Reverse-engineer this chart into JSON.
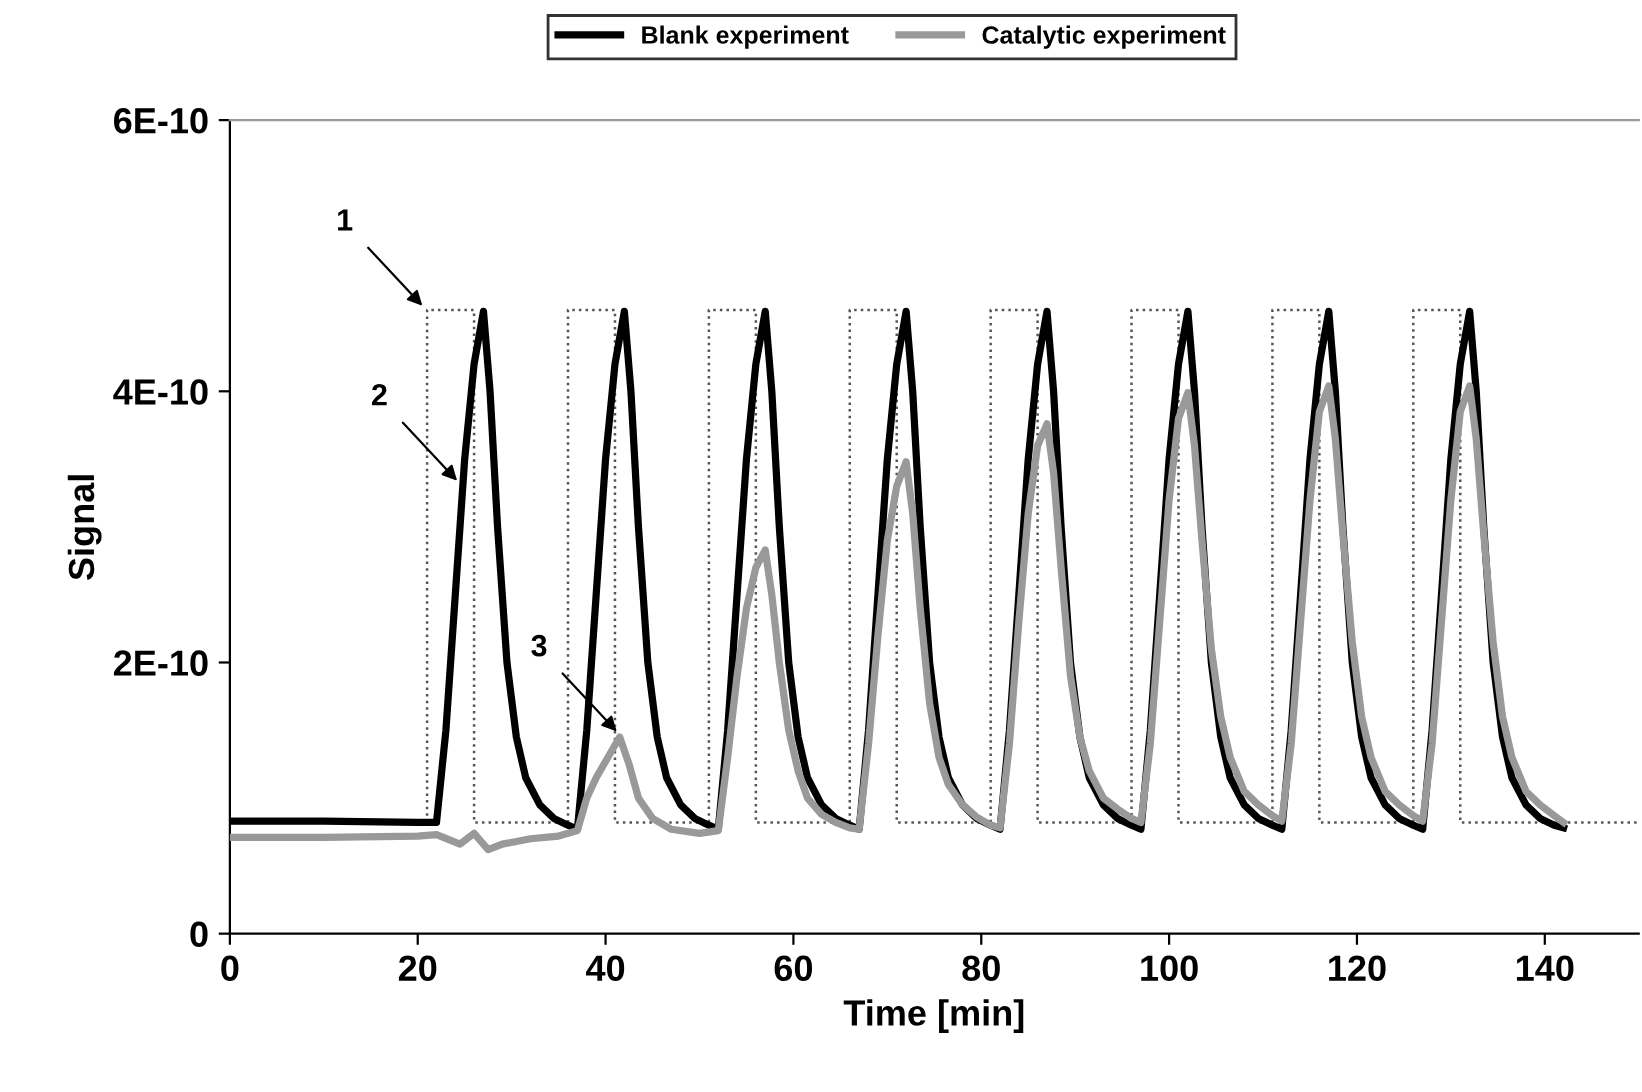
{
  "chart_data": {
    "type": "line",
    "xlabel": "Time [min]",
    "ylabel": "Signal",
    "xlim": [
      0,
      150
    ],
    "xticks": [
      0,
      20,
      40,
      60,
      80,
      100,
      120,
      140
    ],
    "ylim": [
      0,
      6e-10
    ],
    "yticks": [
      0,
      {
        "value": 2e-10,
        "label": "2E-10"
      },
      {
        "value": 4e-10,
        "label": "4E-10"
      },
      {
        "value": 6e-10,
        "label": "6E-10"
      }
    ],
    "grid": false,
    "legend": "top",
    "marker": "none",
    "series": [
      {
        "name": null,
        "color": "#555555",
        "line_style": "dotted",
        "x": [
          21,
          21,
          26,
          26,
          36,
          36,
          41,
          41,
          51,
          51,
          56,
          56,
          66,
          66,
          71,
          71,
          81,
          81,
          86,
          86,
          96,
          96,
          101,
          101,
          111,
          111,
          116,
          116,
          126,
          126,
          131,
          131,
          150
        ],
        "values": [
          8.2e-11,
          4.6e-10,
          4.6e-10,
          8.2e-11,
          8.2e-11,
          4.6e-10,
          4.6e-10,
          8.2e-11,
          8.2e-11,
          4.6e-10,
          4.6e-10,
          8.2e-11,
          8.2e-11,
          4.6e-10,
          4.6e-10,
          8.2e-11,
          8.2e-11,
          4.6e-10,
          4.6e-10,
          8.2e-11,
          8.2e-11,
          4.6e-10,
          4.6e-10,
          8.2e-11,
          8.2e-11,
          4.6e-10,
          4.6e-10,
          8.2e-11,
          8.2e-11,
          4.6e-10,
          4.6e-10,
          8.2e-11,
          8.2e-11
        ]
      },
      {
        "name": "Blank experiment",
        "color": "#000000",
        "line_style": "solid",
        "x": [
          0,
          10,
          20,
          22,
          23,
          24,
          25,
          26,
          27,
          27.7,
          28.5,
          29.5,
          30.5,
          31.5,
          33,
          34.5,
          36,
          37,
          38,
          39,
          40,
          41,
          42,
          42.7,
          43.5,
          44.5,
          45.5,
          46.5,
          48,
          49.5,
          51,
          52,
          53,
          54,
          55,
          56,
          57,
          57.7,
          58.5,
          59.5,
          60.5,
          61.5,
          63,
          64.5,
          66,
          67,
          68,
          69,
          70,
          71,
          72,
          72.7,
          73.5,
          74.5,
          75.5,
          76.5,
          78,
          79.5,
          81,
          82,
          83,
          84,
          85,
          86,
          87,
          87.7,
          88.5,
          89.5,
          90.5,
          91.5,
          93,
          94.5,
          96,
          97,
          98,
          99,
          100,
          101,
          102,
          102.7,
          103.5,
          104.5,
          105.5,
          106.5,
          108,
          109.5,
          111,
          112,
          113,
          114,
          115,
          116,
          117,
          117.7,
          118.5,
          119.5,
          120.5,
          121.5,
          123,
          124.5,
          126,
          127,
          128,
          129,
          130,
          131,
          132,
          132.7,
          133.5,
          134.5,
          135.5,
          136.5,
          138,
          139.5,
          141,
          142
        ],
        "values": [
          8.3e-11,
          8.3e-11,
          8.2e-11,
          8.2e-11,
          1.5e-10,
          2.5e-10,
          3.5e-10,
          4.2e-10,
          4.59e-10,
          4e-10,
          3e-10,
          2e-10,
          1.45e-10,
          1.15e-10,
          9.5e-11,
          8.5e-11,
          8e-11,
          7.7e-11,
          1.5e-10,
          2.5e-10,
          3.5e-10,
          4.2e-10,
          4.59e-10,
          4e-10,
          3e-10,
          2e-10,
          1.45e-10,
          1.15e-10,
          9.5e-11,
          8.5e-11,
          8e-11,
          7.7e-11,
          1.5e-10,
          2.5e-10,
          3.5e-10,
          4.2e-10,
          4.59e-10,
          4e-10,
          3e-10,
          2e-10,
          1.45e-10,
          1.15e-10,
          9.5e-11,
          8.5e-11,
          8e-11,
          7.7e-11,
          1.5e-10,
          2.5e-10,
          3.5e-10,
          4.2e-10,
          4.59e-10,
          4e-10,
          3e-10,
          2e-10,
          1.45e-10,
          1.15e-10,
          9.5e-11,
          8.5e-11,
          8e-11,
          7.7e-11,
          1.5e-10,
          2.5e-10,
          3.5e-10,
          4.2e-10,
          4.59e-10,
          4e-10,
          3e-10,
          2e-10,
          1.45e-10,
          1.15e-10,
          9.5e-11,
          8.5e-11,
          8e-11,
          7.7e-11,
          1.5e-10,
          2.5e-10,
          3.5e-10,
          4.2e-10,
          4.59e-10,
          4e-10,
          3e-10,
          2e-10,
          1.45e-10,
          1.15e-10,
          9.5e-11,
          8.5e-11,
          8e-11,
          7.7e-11,
          1.5e-10,
          2.5e-10,
          3.5e-10,
          4.2e-10,
          4.59e-10,
          4e-10,
          3e-10,
          2e-10,
          1.45e-10,
          1.15e-10,
          9.5e-11,
          8.5e-11,
          8e-11,
          7.7e-11,
          1.5e-10,
          2.5e-10,
          3.5e-10,
          4.2e-10,
          4.59e-10,
          4e-10,
          3e-10,
          2e-10,
          1.45e-10,
          1.15e-10,
          9.5e-11,
          8.5e-11,
          8e-11,
          7.8e-11
        ]
      },
      {
        "name": "Catalytic experiment",
        "color": "#999999",
        "line_style": "solid",
        "x": [
          0,
          10,
          20,
          22,
          24.5,
          26,
          27.5,
          29,
          32,
          35,
          37,
          38,
          39,
          40,
          41.5,
          42.5,
          43.5,
          45,
          47,
          50,
          52,
          53,
          54,
          55,
          56,
          57,
          57.7,
          58.5,
          59.5,
          60.5,
          61.5,
          63,
          64.5,
          66,
          67,
          68,
          69,
          70,
          71,
          72,
          72.7,
          73.5,
          74.5,
          75.5,
          76.5,
          78,
          79.5,
          81,
          82,
          83,
          84,
          85,
          86,
          87,
          87.7,
          88.5,
          89.5,
          90.5,
          91.5,
          93,
          94.5,
          96,
          97,
          98,
          99,
          100,
          101,
          102,
          102.7,
          103.5,
          104.5,
          105.5,
          106.5,
          108,
          109.5,
          111,
          112,
          113,
          114,
          115,
          116,
          117,
          117.7,
          118.5,
          119.5,
          120.5,
          121.5,
          123,
          124.5,
          126,
          127,
          128,
          129,
          130,
          131,
          132,
          132.7,
          133.5,
          134.5,
          135.5,
          136.5,
          138,
          139.5,
          141,
          142
        ],
        "values": [
          7.1e-11,
          7.1e-11,
          7.2e-11,
          7.3e-11,
          6.6e-11,
          7.4e-11,
          6.2e-11,
          6.6e-11,
          7e-11,
          7.2e-11,
          7.6e-11,
          1e-10,
          1.15e-10,
          1.27e-10,
          1.45e-10,
          1.25e-10,
          1e-10,
          8.5e-11,
          7.7e-11,
          7.4e-11,
          7.6e-11,
          1.3e-10,
          1.9e-10,
          2.4e-10,
          2.7e-10,
          2.83e-10,
          2.5e-10,
          2e-10,
          1.5e-10,
          1.2e-10,
          1e-10,
          8.8e-11,
          8.2e-11,
          7.8e-11,
          7.7e-11,
          1.4e-10,
          2.2e-10,
          2.9e-10,
          3.3e-10,
          3.48e-10,
          3.1e-10,
          2.4e-10,
          1.7e-10,
          1.3e-10,
          1.1e-10,
          9.5e-11,
          8.6e-11,
          8e-11,
          7.8e-11,
          1.4e-10,
          2.3e-10,
          3.1e-10,
          3.6e-10,
          3.76e-10,
          3.4e-10,
          2.7e-10,
          1.9e-10,
          1.45e-10,
          1.2e-10,
          1e-10,
          9.2e-11,
          8.5e-11,
          8.2e-11,
          1.4e-10,
          2.3e-10,
          3.2e-10,
          3.8e-10,
          3.99e-10,
          3.6e-10,
          2.9e-10,
          2.1e-10,
          1.6e-10,
          1.3e-10,
          1.05e-10,
          9.5e-11,
          8.7e-11,
          8.3e-11,
          1.4e-10,
          2.3e-10,
          3.2e-10,
          3.85e-10,
          4.04e-10,
          3.65e-10,
          2.95e-10,
          2.15e-10,
          1.6e-10,
          1.3e-10,
          1.05e-10,
          9.5e-11,
          8.7e-11,
          8.3e-11,
          1.4e-10,
          2.3e-10,
          3.2e-10,
          3.85e-10,
          4.04e-10,
          3.65e-10,
          2.95e-10,
          2.15e-10,
          1.6e-10,
          1.3e-10,
          1.05e-10,
          9.5e-11,
          8.7e-11,
          8.2e-11
        ]
      }
    ],
    "annotations": [
      {
        "text": "1",
        "x": 20.5,
        "y": 4.63e-10
      },
      {
        "text": "2",
        "x": 24.2,
        "y": 3.34e-10
      },
      {
        "text": "3",
        "x": 41.2,
        "y": 1.49e-10
      }
    ]
  }
}
